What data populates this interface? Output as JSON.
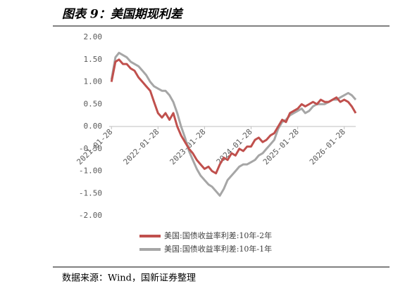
{
  "chart_data": {
    "type": "line",
    "title": "图表 9：美国期现利差",
    "source": "数据来源：Wind，国新证券整理",
    "x": [
      "2021-01-28",
      "2021-02-28",
      "2021-03-28",
      "2021-04-28",
      "2021-05-28",
      "2021-06-28",
      "2021-07-28",
      "2021-08-28",
      "2021-09-28",
      "2021-10-28",
      "2021-11-28",
      "2021-12-28",
      "2022-01-28",
      "2022-02-28",
      "2022-03-28",
      "2022-04-28",
      "2022-05-28",
      "2022-06-28",
      "2022-07-28",
      "2022-08-28",
      "2022-09-28",
      "2022-10-28",
      "2022-11-28",
      "2022-12-28",
      "2023-01-28",
      "2023-02-28",
      "2023-03-28",
      "2023-04-28",
      "2023-05-28",
      "2023-06-28",
      "2023-07-28",
      "2023-08-28",
      "2023-09-28",
      "2023-10-28",
      "2023-11-28",
      "2023-12-28",
      "2024-01-28",
      "2024-02-28",
      "2024-03-28",
      "2024-04-28",
      "2024-05-28",
      "2024-06-28",
      "2024-07-28",
      "2024-08-28",
      "2024-09-28",
      "2024-10-28",
      "2024-11-28",
      "2024-12-28",
      "2025-01-28",
      "2025-02-28",
      "2025-03-28",
      "2025-04-28",
      "2025-05-28",
      "2025-06-28",
      "2025-07-28",
      "2025-08-28",
      "2025-09-28",
      "2025-10-28",
      "2025-11-28",
      "2025-12-28",
      "2026-01-28",
      "2026-02-28",
      "2026-03-28",
      "2026-04-28"
    ],
    "series": [
      {
        "name": "美国:国债收益率利差:10年-2年",
        "color": "#c0504d",
        "values": [
          1.0,
          1.45,
          1.5,
          1.4,
          1.4,
          1.3,
          1.25,
          1.1,
          1.0,
          0.9,
          0.8,
          0.55,
          0.3,
          0.2,
          0.3,
          0.15,
          0.3,
          0.0,
          -0.2,
          -0.35,
          -0.5,
          -0.6,
          -0.75,
          -0.85,
          -0.95,
          -0.9,
          -1.0,
          -1.05,
          -0.85,
          -0.7,
          -0.75,
          -0.6,
          -0.65,
          -0.5,
          -0.55,
          -0.45,
          -0.45,
          -0.3,
          -0.25,
          -0.35,
          -0.3,
          -0.2,
          -0.15,
          0.0,
          0.15,
          0.1,
          0.3,
          0.35,
          0.4,
          0.5,
          0.45,
          0.5,
          0.55,
          0.5,
          0.6,
          0.55,
          0.55,
          0.6,
          0.65,
          0.55,
          0.6,
          0.55,
          0.45,
          0.3
        ]
      },
      {
        "name": "美国:国债收益率利差:10年-1年",
        "color": "#a6a6a6",
        "values": [
          1.05,
          1.55,
          1.65,
          1.6,
          1.55,
          1.45,
          1.4,
          1.35,
          1.25,
          1.15,
          1.0,
          0.9,
          0.85,
          0.8,
          0.8,
          0.7,
          0.55,
          0.3,
          0.0,
          -0.25,
          -0.55,
          -0.75,
          -0.95,
          -1.1,
          -1.2,
          -1.3,
          -1.35,
          -1.45,
          -1.55,
          -1.4,
          -1.2,
          -1.1,
          -1.0,
          -0.9,
          -0.85,
          -0.85,
          -0.8,
          -0.75,
          -0.65,
          -0.6,
          -0.5,
          -0.4,
          -0.3,
          -0.05,
          0.1,
          0.15,
          0.25,
          0.3,
          0.35,
          0.4,
          0.3,
          0.35,
          0.45,
          0.5,
          0.5,
          0.5,
          0.55,
          0.6,
          0.6,
          0.65,
          0.7,
          0.75,
          0.7,
          0.6
        ]
      }
    ],
    "xlim": [
      "2021-01-10",
      "2026-04-28"
    ],
    "xticks": [
      "2021-01-28",
      "2022-01-28",
      "2023-01-28",
      "2024-01-28",
      "2025-01-28",
      "2026-01-28"
    ],
    "ylim": [
      -2,
      2
    ],
    "yticks": [
      {
        "value": 2,
        "label": "2.00"
      },
      {
        "value": 1.5,
        "label": "1.50"
      },
      {
        "value": 1,
        "label": "1.00"
      },
      {
        "value": 0.5,
        "label": "0.50"
      },
      {
        "value": 0,
        "label": "0.00"
      },
      {
        "value": -0.5,
        "label": "-0.50"
      },
      {
        "value": -1,
        "label": "-1.00"
      },
      {
        "value": -1.5,
        "label": "-1.50"
      },
      {
        "value": -2,
        "label": "-2.00"
      }
    ],
    "grid": false
  }
}
